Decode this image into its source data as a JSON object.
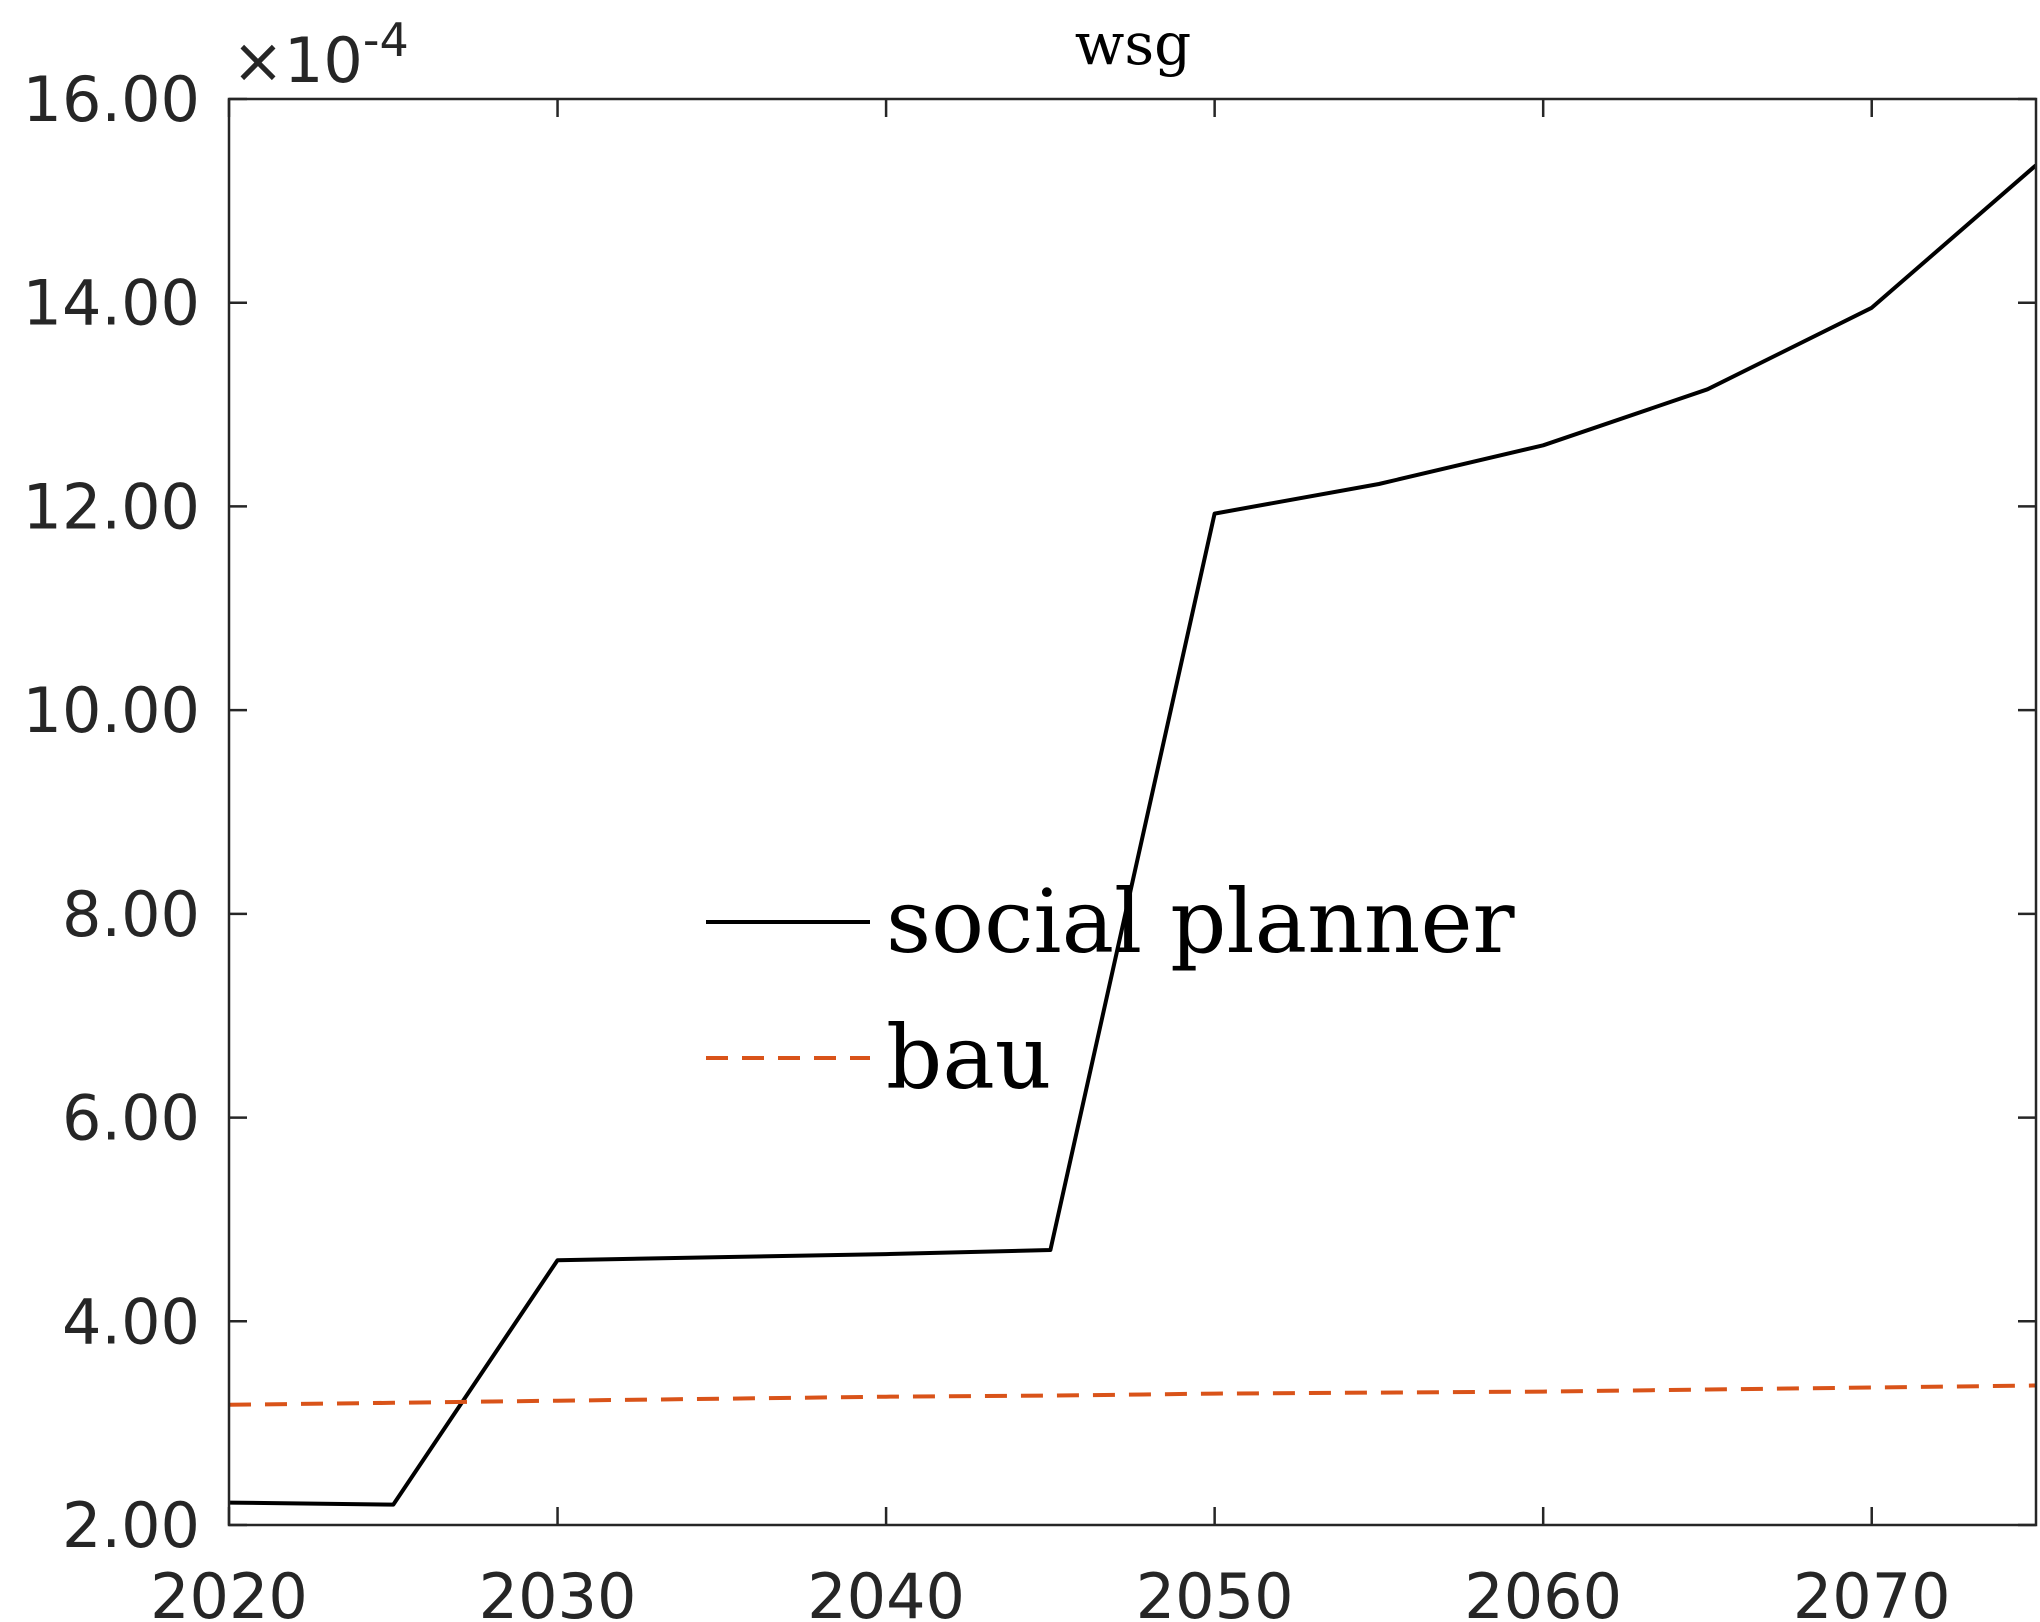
{
  "chart_data": {
    "type": "line",
    "title": "wsg",
    "xlabel": "",
    "ylabel": "",
    "xlim": [
      2020,
      2075
    ],
    "ylim": [
      2.0,
      16.0
    ],
    "y_scale_multiplier": "×10-4",
    "y_exponent_base": "×10",
    "y_exponent_power": "-4",
    "xticks": [
      2020,
      2030,
      2040,
      2050,
      2060,
      2070
    ],
    "xtick_labels": [
      "2020",
      "2030",
      "2040",
      "2050",
      "2060",
      "2070"
    ],
    "yticks": [
      2,
      4,
      6,
      8,
      10,
      12,
      14,
      16
    ],
    "ytick_labels": [
      "2.00",
      "4.00",
      "6.00",
      "8.00",
      "10.00",
      "12.00",
      "14.00",
      "16.00"
    ],
    "grid": false,
    "legend_position": "center",
    "x": [
      2020,
      2025,
      2030,
      2035,
      2040,
      2045,
      2050,
      2055,
      2060,
      2065,
      2070,
      2075
    ],
    "series": [
      {
        "name": "social planner",
        "color": "#000000",
        "style": "solid",
        "values": [
          2.22,
          2.2,
          4.6,
          4.63,
          4.66,
          4.7,
          11.93,
          12.22,
          12.6,
          13.15,
          13.95,
          15.35
        ]
      },
      {
        "name": "bau",
        "color": "#D95319",
        "style": "dashed",
        "values": [
          3.18,
          3.2,
          3.22,
          3.24,
          3.26,
          3.27,
          3.29,
          3.3,
          3.31,
          3.33,
          3.35,
          3.37
        ]
      }
    ]
  }
}
